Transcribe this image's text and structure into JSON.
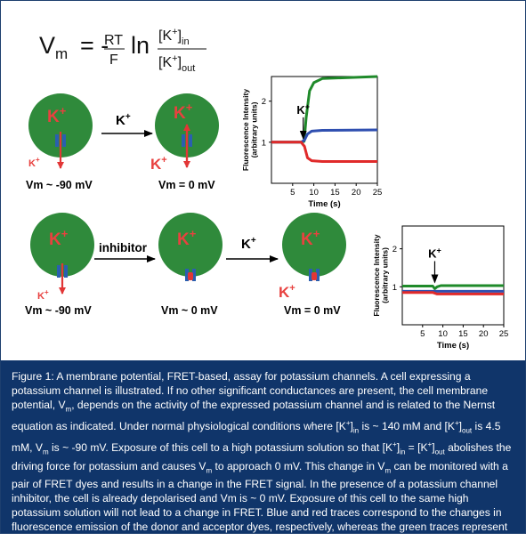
{
  "equation": {
    "lhs": "V",
    "lhs_sub": "m",
    "equals": "= -",
    "rt": "RT",
    "f": "F",
    "ln": "ln",
    "num": "[K",
    "num_sup": "+",
    "num_close": "]",
    "num_sub": "in",
    "den": "[K",
    "den_sup": "+",
    "den_close": "]",
    "den_sub": "out"
  },
  "row1": {
    "cell1": {
      "ion_label": "K",
      "ion_sup": "+",
      "out_label": "K",
      "out_sup": "+",
      "voltage": "Vm ~ -90 mV"
    },
    "arrow_label": "K",
    "arrow_sup": "+",
    "cell2": {
      "ion_label": "K",
      "ion_sup": "+",
      "out_label": "K",
      "out_sup": "+",
      "voltage": "Vm = 0 mV"
    }
  },
  "row2": {
    "cell1": {
      "ion_label": "K",
      "ion_sup": "+",
      "out_label": "K",
      "out_sup": "+",
      "voltage": "Vm ~ -90 mV"
    },
    "arrow1_label": "inhibitor",
    "cell2": {
      "ion_label": "K",
      "ion_sup": "+",
      "voltage": "Vm ~ 0 mV"
    },
    "arrow2_label": "K",
    "arrow2_sup": "+",
    "cell3": {
      "ion_label": "K",
      "ion_sup": "+",
      "out_label": "K",
      "out_sup": "+",
      "voltage": "Vm = 0 mV"
    }
  },
  "colors": {
    "cell_fill": "#2f8a3b",
    "ion_text": "#e8413f",
    "channel": "#2a5fb0",
    "arrow_red": "#e23636",
    "green_trace": "#1f8a2a",
    "blue_trace": "#2f4fb0",
    "red_trace": "#e02a2a",
    "caption_bg": "#10356a"
  },
  "chart_data": [
    {
      "type": "line",
      "ylabel": "Fluorescence Intensity (arbitrary units)",
      "xlabel": "Time (s)",
      "xlim": [
        0,
        25
      ],
      "ylim": [
        0,
        2.6
      ],
      "xticks": [
        "5",
        "10",
        "15",
        "20",
        "25"
      ],
      "yticks": [
        "1",
        "2"
      ],
      "annotation": "K",
      "annotation_sup": "+",
      "annotation_x": 7.5,
      "series": [
        {
          "color": "#1f8a2a",
          "x": [
            0,
            7,
            7.7,
            8.2,
            9,
            10,
            12,
            25
          ],
          "y": [
            1.0,
            1.0,
            1.02,
            1.6,
            2.25,
            2.45,
            2.55,
            2.6
          ]
        },
        {
          "color": "#2f4fb0",
          "x": [
            0,
            7,
            7.8,
            8.5,
            9.5,
            12,
            25
          ],
          "y": [
            1.0,
            1.0,
            1.05,
            1.2,
            1.27,
            1.29,
            1.3
          ]
        },
        {
          "color": "#e02a2a",
          "x": [
            0,
            7,
            7.8,
            8.5,
            9.5,
            12,
            25
          ],
          "y": [
            1.0,
            1.0,
            0.9,
            0.62,
            0.55,
            0.53,
            0.53
          ]
        }
      ]
    },
    {
      "type": "line",
      "ylabel": "Fluorescence Intensity (arbitrary units)",
      "xlabel": "Time (s)",
      "xlim": [
        0,
        25
      ],
      "ylim": [
        0,
        2.6
      ],
      "xticks": [
        "5",
        "10",
        "15",
        "20",
        "25"
      ],
      "yticks": [
        "1",
        "2"
      ],
      "annotation": "K",
      "annotation_sup": "+",
      "annotation_x": 8,
      "series": [
        {
          "color": "#1f8a2a",
          "x": [
            0,
            7.5,
            8,
            8.6,
            9.5,
            25
          ],
          "y": [
            1.02,
            1.02,
            0.95,
            1.0,
            1.03,
            1.03
          ]
        },
        {
          "color": "#2f4fb0",
          "x": [
            0,
            25
          ],
          "y": [
            0.88,
            0.88
          ]
        },
        {
          "color": "#e02a2a",
          "x": [
            0,
            7.5,
            8.5,
            25
          ],
          "y": [
            0.85,
            0.85,
            0.81,
            0.81
          ]
        }
      ]
    }
  ],
  "caption": {
    "p1": "Figure 1: A membrane potential, FRET-based, assay for potassium channels. A cell expressing a potassium channel is illustrated. If no other significant conductances are present, the cell membrane potential, V",
    "p1_sub": "m",
    "p2": ", depends on the activity of the expressed potassium channel and is related to the Nernst equation as indicated. Under normal physiological conditions where [K",
    "p2_sup": "+",
    "p2_b": "]",
    "p2_sub": "in",
    "p3": " is ~ 140 mM and [K",
    "p3_sup": "+",
    "p3_b": "]",
    "p3_sub": "out",
    "p4": " is 4.5 mM, V",
    "p4_sub": "m",
    "p5": " is ~ -90 mV. Exposure of this cell to a high potassium solution so that [K",
    "p5_sup": "+",
    "p5_b": "]",
    "p5_sub": "in",
    "p6": " = [K",
    "p6_sup": "+",
    "p6_b": "]",
    "p6_sub": "out",
    "p7": " abolishes the driving force for potassium and causes V",
    "p7_sub": "m",
    "p8": " to approach 0 mV. This change in V",
    "p8_sub": "m",
    "p9": " can be monitored with a pair of FRET dyes and results in a change in the FRET signal. In the presence of a potassium channel inhibitor, the cell is already depolarised and Vm is ~ 0 mV. Exposure of this cell to the same high potassium solution will not lead to a change in FRET. Blue and red traces correspond to the changes in fluorescence emission of the donor and acceptor dyes, respectively, whereas the green traces represent the ratio donor/acceptor"
  }
}
